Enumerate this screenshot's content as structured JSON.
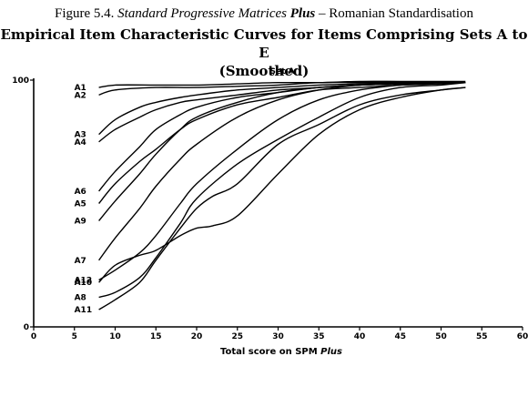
{
  "figure_caption": {
    "number": "Figure 5.4.",
    "title_italic": "Standard Progressive Matrices",
    "title_bold": "Plus",
    "suffix": "– Romanian Standardisation"
  },
  "chart_title_line1": "Empirical Item Characteristic Curves for Items Comprising Sets A to E",
  "chart_title_line2": "(Smoothed)",
  "chart_data": {
    "type": "line",
    "subtitle": "Set A",
    "xlabel_main": "Total score on SPM",
    "xlabel_italic": "Plus",
    "ylabel": "",
    "xlim": [
      0,
      60
    ],
    "ylim": [
      0,
      100
    ],
    "xticks": [
      0,
      5,
      10,
      15,
      20,
      25,
      30,
      35,
      40,
      45,
      50,
      55,
      60
    ],
    "yticks": [
      0,
      100
    ],
    "grid": false,
    "series": [
      {
        "name": "A1",
        "x": [
          8,
          10,
          15,
          20,
          25,
          30,
          35,
          40,
          45,
          50,
          53
        ],
        "values": [
          97,
          98,
          98,
          98,
          98.5,
          99,
          99,
          99.5,
          99.5,
          99.5,
          99.5
        ]
      },
      {
        "name": "A2",
        "x": [
          8,
          10,
          15,
          20,
          25,
          30,
          35,
          40,
          45,
          50,
          53
        ],
        "values": [
          94,
          96,
          97,
          97,
          97.5,
          98,
          99,
          99,
          99,
          99,
          99
        ]
      },
      {
        "name": "A3",
        "x": [
          8,
          10,
          13,
          15,
          18,
          20,
          25,
          30,
          35,
          40,
          45,
          50,
          53
        ],
        "values": [
          78,
          84,
          89,
          91,
          93,
          94,
          96,
          97,
          98,
          98.5,
          99,
          99,
          99
        ]
      },
      {
        "name": "A4",
        "x": [
          8,
          10,
          13,
          15,
          18,
          20,
          25,
          30,
          35,
          40,
          45,
          50,
          53
        ],
        "values": [
          75,
          80,
          85,
          88,
          91,
          92,
          94,
          96,
          97,
          98,
          98.5,
          99,
          99
        ]
      },
      {
        "name": "A6",
        "x": [
          8,
          10,
          13,
          15,
          18,
          20,
          25,
          30,
          35,
          40,
          45,
          50,
          53
        ],
        "values": [
          55,
          63,
          73,
          80,
          86,
          89,
          93,
          95,
          97,
          98,
          98.5,
          99,
          99
        ]
      },
      {
        "name": "A5",
        "x": [
          8,
          10,
          13,
          15,
          18,
          20,
          25,
          30,
          35,
          40,
          45,
          50,
          53
        ],
        "values": [
          50,
          58,
          67,
          72,
          80,
          84,
          90,
          93,
          96,
          97,
          98,
          98.5,
          99
        ]
      },
      {
        "name": "A9",
        "x": [
          8,
          10,
          13,
          15,
          18,
          20,
          25,
          30,
          35,
          40,
          45,
          50,
          53
        ],
        "values": [
          43,
          51,
          62,
          70,
          80,
          85,
          91,
          95,
          97,
          98,
          98.5,
          99,
          99
        ]
      },
      {
        "name": "A7",
        "x": [
          8,
          10,
          13,
          15,
          18,
          20,
          25,
          30,
          35,
          40,
          45,
          50,
          53
        ],
        "values": [
          27,
          36,
          48,
          57,
          68,
          74,
          85,
          92,
          96,
          98,
          99,
          99,
          99
        ]
      },
      {
        "name": "A12",
        "x": [
          8,
          10,
          13,
          15,
          18,
          20,
          25,
          30,
          35,
          40,
          45,
          50,
          53
        ],
        "values": [
          19,
          23,
          30,
          37,
          50,
          58,
          72,
          84,
          92,
          96,
          98,
          99,
          99
        ]
      },
      {
        "name": "A10",
        "x": [
          8,
          10,
          13,
          15,
          18,
          20,
          22,
          25,
          30,
          35,
          40,
          45,
          50,
          53
        ],
        "values": [
          18,
          25,
          29,
          31,
          37,
          40,
          41,
          45,
          62,
          78,
          88,
          93,
          96,
          97
        ]
      },
      {
        "name": "A8",
        "x": [
          8,
          10,
          13,
          15,
          18,
          20,
          25,
          30,
          35,
          40,
          45,
          50,
          53
        ],
        "values": [
          12,
          14,
          20,
          28,
          42,
          52,
          66,
          76,
          85,
          93,
          97,
          98,
          99
        ]
      },
      {
        "name": "A11",
        "x": [
          8,
          10,
          13,
          15,
          18,
          20,
          22,
          25,
          30,
          35,
          40,
          45,
          50,
          53
        ],
        "values": [
          7,
          11,
          18,
          27,
          40,
          48,
          53,
          58,
          74,
          82,
          90,
          94,
          96,
          97
        ]
      }
    ]
  }
}
